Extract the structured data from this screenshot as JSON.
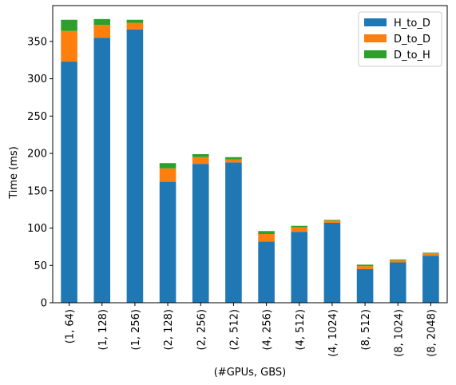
{
  "chart_data": {
    "type": "bar",
    "stacked": true,
    "categories": [
      "(1, 64)",
      "(1, 128)",
      "(1, 256)",
      "(2, 128)",
      "(2, 256)",
      "(2, 512)",
      "(4, 256)",
      "(4, 512)",
      "(4, 1024)",
      "(8, 512)",
      "(8, 1024)",
      "(8, 2048)"
    ],
    "series": [
      {
        "name": "H_to_D",
        "color": "#1f77b4",
        "values": [
          323,
          355,
          366,
          162,
          186,
          188,
          82,
          95,
          107,
          45,
          54,
          63
        ]
      },
      {
        "name": "D_to_D",
        "color": "#ff7f0e",
        "values": [
          41,
          17,
          9,
          18,
          9,
          4,
          10,
          6,
          3,
          4,
          3,
          3
        ]
      },
      {
        "name": "D_to_H",
        "color": "#2ca02c",
        "values": [
          15,
          8,
          4,
          7,
          4,
          3,
          4,
          2,
          1,
          2,
          1,
          1
        ]
      }
    ],
    "title": "",
    "xlabel": "(#GPUs, GBS)",
    "ylabel": "Time (ms)",
    "yticks": [
      0,
      50,
      100,
      150,
      200,
      250,
      300,
      350
    ],
    "ylim": [
      0,
      398
    ],
    "legend_position": "top-right",
    "grid": false
  }
}
